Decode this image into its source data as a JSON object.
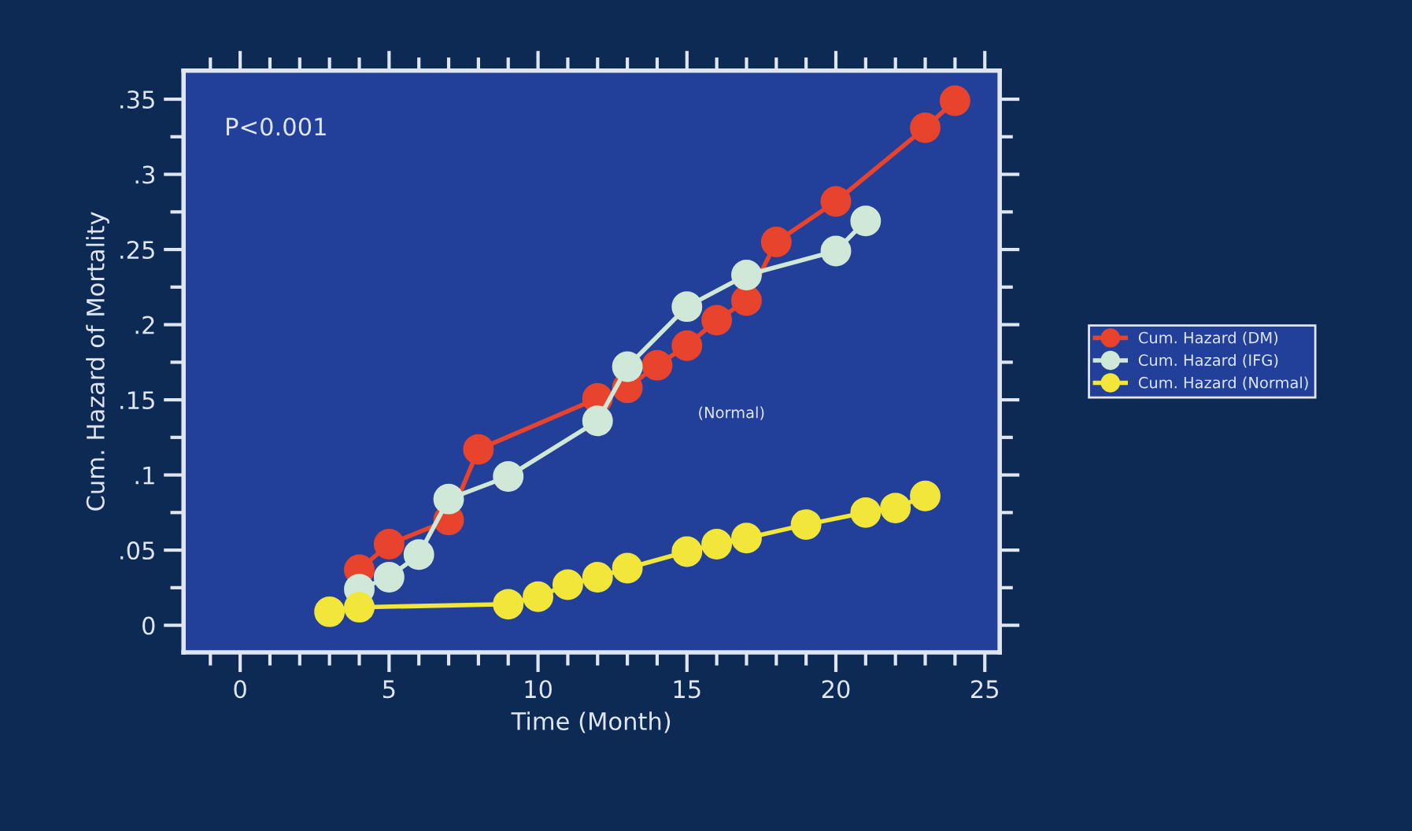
{
  "chart_data": {
    "type": "line",
    "xlabel": "Time (Month)",
    "ylabel": "Cum. Hazard of Mortality",
    "xlim": [
      -1.9,
      25.5
    ],
    "ylim": [
      -0.018,
      0.369
    ],
    "xticks": [
      0,
      5,
      10,
      15,
      20,
      25
    ],
    "yticks": [
      {
        "value": 0,
        "label": "0"
      },
      {
        "value": 0.05,
        "label": ".05"
      },
      {
        "value": 0.1,
        "label": ".1"
      },
      {
        "value": 0.15,
        "label": ".15"
      },
      {
        "value": 0.2,
        "label": ".2"
      },
      {
        "value": 0.25,
        "label": ".25"
      },
      {
        "value": 0.3,
        "label": ".3"
      },
      {
        "value": 0.35,
        "label": ".35"
      }
    ],
    "marker": "circle",
    "line_style": "solid",
    "grid": false,
    "legend": "right",
    "annotations": [
      "P<0.001",
      "(Normal)"
    ],
    "series": [
      {
        "name": "Cum. Hazard (DM)",
        "color": "#e8432c",
        "x": [
          4,
          5,
          7,
          8,
          12,
          13,
          14,
          15,
          16,
          17,
          18,
          20,
          23,
          24
        ],
        "values": [
          0.037,
          0.054,
          0.07,
          0.117,
          0.151,
          0.158,
          0.173,
          0.186,
          0.203,
          0.216,
          0.255,
          0.282,
          0.331,
          0.349
        ]
      },
      {
        "name": "Cum. Hazard (IFG)",
        "color": "#cfe8d8",
        "x": [
          4,
          5,
          6,
          7,
          9,
          12,
          13,
          15,
          17,
          20,
          21
        ],
        "values": [
          0.024,
          0.032,
          0.047,
          0.084,
          0.099,
          0.136,
          0.172,
          0.212,
          0.233,
          0.249,
          0.269
        ]
      },
      {
        "name": "Cum. Hazard (Normal)",
        "color": "#f2e63a",
        "x": [
          3,
          4,
          9,
          10,
          11,
          12,
          13,
          15,
          16,
          17,
          19,
          21,
          22,
          23
        ],
        "values": [
          0.009,
          0.012,
          0.014,
          0.019,
          0.027,
          0.032,
          0.038,
          0.049,
          0.054,
          0.058,
          0.067,
          0.075,
          0.078,
          0.086
        ]
      }
    ]
  }
}
